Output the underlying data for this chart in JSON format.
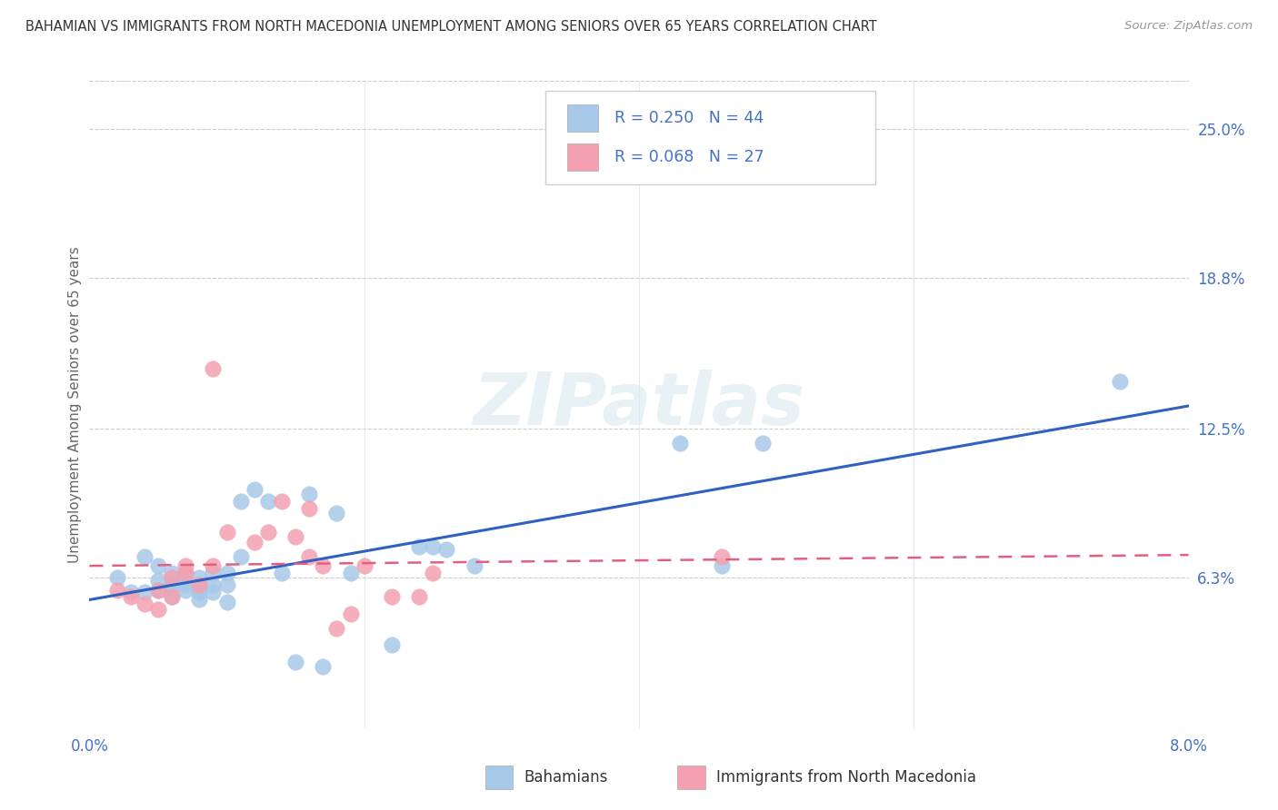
{
  "title": "BAHAMIAN VS IMMIGRANTS FROM NORTH MACEDONIA UNEMPLOYMENT AMONG SENIORS OVER 65 YEARS CORRELATION CHART",
  "source": "Source: ZipAtlas.com",
  "ylabel": "Unemployment Among Seniors over 65 years",
  "xlim": [
    0.0,
    0.08
  ],
  "ylim": [
    0.0,
    0.27
  ],
  "yticks": [
    0.063,
    0.125,
    0.188,
    0.25
  ],
  "ytick_labels": [
    "6.3%",
    "12.5%",
    "18.8%",
    "25.0%"
  ],
  "xticks": [
    0.0,
    0.02,
    0.04,
    0.06,
    0.08
  ],
  "xtick_labels": [
    "0.0%",
    "",
    "",
    "",
    "8.0%"
  ],
  "legend_labels": [
    "Bahamians",
    "Immigrants from North Macedonia"
  ],
  "R_blue": 0.25,
  "N_blue": 44,
  "R_pink": 0.068,
  "N_pink": 27,
  "blue_color": "#a8c8e8",
  "pink_color": "#f4a0b0",
  "blue_line_color": "#3060c0",
  "pink_line_color": "#e06080",
  "axis_label_color": "#4472c4",
  "watermark": "ZIPatlas",
  "blue_x": [
    0.002,
    0.003,
    0.004,
    0.004,
    0.005,
    0.005,
    0.005,
    0.006,
    0.006,
    0.006,
    0.006,
    0.007,
    0.007,
    0.007,
    0.007,
    0.008,
    0.008,
    0.008,
    0.008,
    0.009,
    0.009,
    0.009,
    0.01,
    0.01,
    0.01,
    0.011,
    0.011,
    0.012,
    0.013,
    0.014,
    0.015,
    0.016,
    0.017,
    0.018,
    0.019,
    0.022,
    0.024,
    0.025,
    0.026,
    0.028,
    0.043,
    0.046,
    0.049,
    0.075
  ],
  "blue_y": [
    0.063,
    0.057,
    0.072,
    0.057,
    0.068,
    0.058,
    0.062,
    0.06,
    0.065,
    0.059,
    0.055,
    0.065,
    0.063,
    0.058,
    0.06,
    0.058,
    0.063,
    0.057,
    0.054,
    0.065,
    0.06,
    0.057,
    0.065,
    0.06,
    0.053,
    0.072,
    0.095,
    0.1,
    0.095,
    0.065,
    0.028,
    0.098,
    0.026,
    0.09,
    0.065,
    0.035,
    0.076,
    0.076,
    0.075,
    0.068,
    0.119,
    0.068,
    0.119,
    0.145
  ],
  "pink_x": [
    0.002,
    0.003,
    0.004,
    0.005,
    0.005,
    0.006,
    0.006,
    0.007,
    0.007,
    0.008,
    0.009,
    0.009,
    0.01,
    0.012,
    0.013,
    0.014,
    0.015,
    0.016,
    0.016,
    0.017,
    0.018,
    0.019,
    0.02,
    0.022,
    0.024,
    0.025,
    0.046
  ],
  "pink_y": [
    0.058,
    0.055,
    0.052,
    0.058,
    0.05,
    0.063,
    0.055,
    0.068,
    0.065,
    0.06,
    0.15,
    0.068,
    0.082,
    0.078,
    0.082,
    0.095,
    0.08,
    0.092,
    0.072,
    0.068,
    0.042,
    0.048,
    0.068,
    0.055,
    0.055,
    0.065,
    0.072
  ]
}
